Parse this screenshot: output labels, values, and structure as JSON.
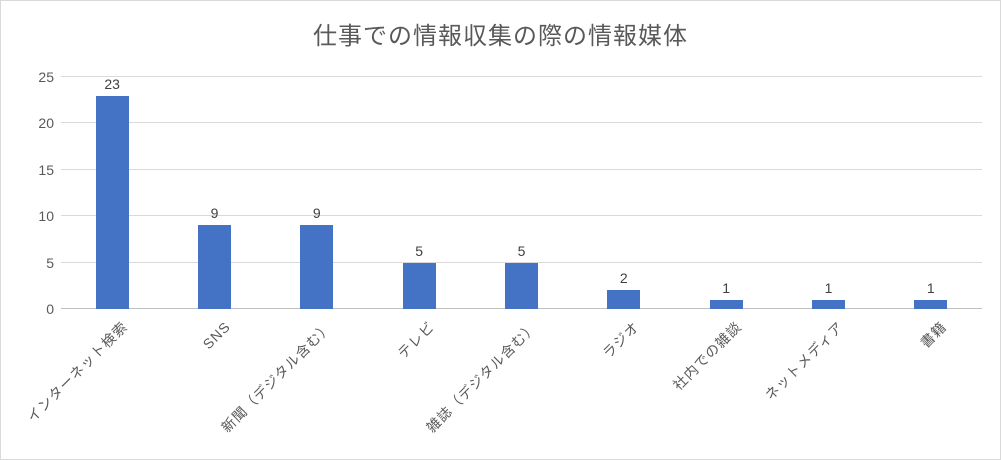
{
  "title": "仕事での情報収集の際の情報媒体",
  "colors": {
    "bar": "#4472C4",
    "gridline": "#D9D9D9",
    "axis_line": "#BFBFBF",
    "title_text": "#595959",
    "tick_text": "#595959",
    "data_label_text": "#404040",
    "border": "#D9D9D9",
    "background": "#FFFFFF"
  },
  "chart_data": {
    "type": "bar",
    "title": "仕事での情報収集の際の情報媒体",
    "categories": [
      "インターネット検索",
      "SNS",
      "新聞（デジタル含む）",
      "テレビ",
      "雑誌（デジタル含む）",
      "ラジオ",
      "社内での雑談",
      "ネットメディア",
      "書籍"
    ],
    "values": [
      23,
      9,
      9,
      5,
      5,
      2,
      1,
      1,
      1
    ],
    "data_labels": [
      "23",
      "9",
      "9",
      "5",
      "5",
      "2",
      "1",
      "1",
      "1"
    ],
    "xlabel": "",
    "ylabel": "",
    "ylim": [
      0,
      25
    ],
    "yticks": [
      0,
      5,
      10,
      15,
      20,
      25
    ],
    "grid": "horizontal",
    "legend": "none",
    "x_label_rotation_deg": 45
  }
}
